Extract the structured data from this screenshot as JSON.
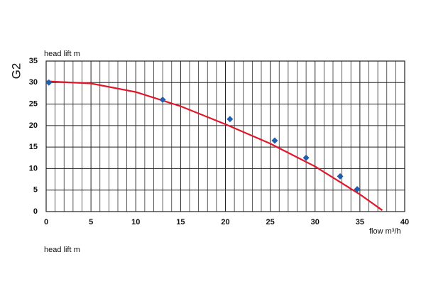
{
  "chart_data": {
    "type": "line",
    "y_label": "head lift m",
    "x_label": "flow m³/h",
    "side_label": "G2",
    "footer_label": "head lift m",
    "curve": {
      "color": "#e0162b",
      "x": [
        0,
        5,
        10,
        15,
        20,
        25,
        30,
        35,
        37.5
      ],
      "values": [
        30.3,
        29.8,
        27.8,
        24.5,
        20.3,
        15.8,
        10.5,
        4,
        0.3
      ]
    },
    "points": {
      "color": "#1f5fae",
      "x": [
        0.3,
        13,
        20.5,
        25.5,
        29,
        32.8,
        34.7
      ],
      "values": [
        30,
        26,
        21.5,
        16.5,
        12.5,
        8.2,
        5.2
      ]
    },
    "xlim": [
      0,
      40
    ],
    "ylim": [
      0,
      35
    ],
    "xticks": [
      0,
      5,
      10,
      15,
      20,
      25,
      30,
      35,
      40
    ],
    "yticks": [
      0,
      5,
      10,
      15,
      20,
      25,
      30,
      35
    ],
    "xgrid": [
      1,
      2,
      3,
      4,
      6,
      7,
      8,
      9,
      11,
      12,
      13,
      14,
      16,
      17,
      18,
      19,
      21,
      22,
      23,
      24,
      26,
      27,
      28,
      29,
      31,
      32,
      33,
      34,
      36,
      37,
      38,
      39
    ],
    "grid": true
  }
}
